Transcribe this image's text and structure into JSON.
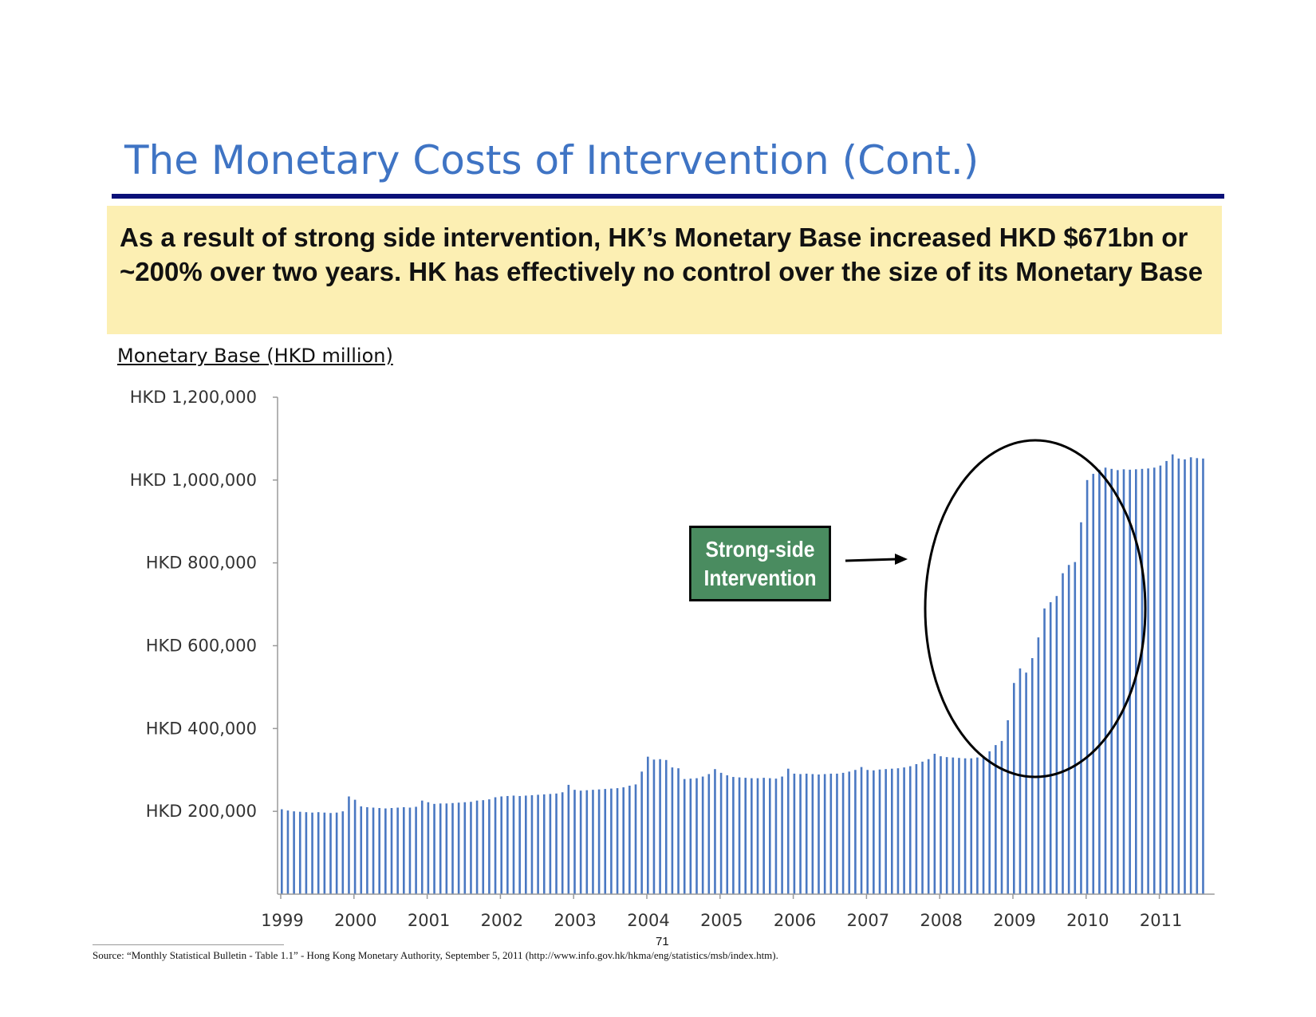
{
  "slide": {
    "title": "The Monetary Costs of Intervention (Cont.)",
    "callout": "As a result of strong side intervention, HK’s Monetary Base increased HKD $671bn or ~200% over two years. HK has effectively no control over the size of its Monetary Base",
    "chart_subtitle": "Monetary Base (HKD million)",
    "annotation": {
      "line1": "Strong-side",
      "line2": "Intervention"
    },
    "page_number": "71",
    "source": "Source: “Monthly Statistical Bulletin - Table 1.1” - Hong Kong Monetary Authority, September 5, 2011 (http://www.info.gov.hk/hkma/eng/statistics/msb/index.htm).",
    "colors": {
      "title": "#3f74c4",
      "rule": "#0a1078",
      "callout_bg": "#fcefb3",
      "bar": "#4a78c2",
      "annotation_bg": "#4a8c60"
    }
  },
  "chart_data": {
    "type": "bar",
    "title": "Monetary Base (HKD million)",
    "xlabel": "",
    "ylabel": "",
    "ylim": [
      0,
      1200000
    ],
    "yticks": [
      200000,
      400000,
      600000,
      800000,
      1000000,
      1200000
    ],
    "ytick_labels": [
      "HKD 200,000",
      "HKD 400,000",
      "HKD 600,000",
      "HKD 800,000",
      "HKD 1,000,000",
      "HKD 1,200,000"
    ],
    "year_labels": [
      "1999",
      "2000",
      "2001",
      "2002",
      "2003",
      "2004",
      "2005",
      "2006",
      "2007",
      "2008",
      "2009",
      "2010",
      "2011"
    ],
    "frequency": "monthly",
    "start": "1999-01",
    "series": [
      {
        "name": "Monetary Base",
        "values": [
          205000,
          202000,
          200000,
          199000,
          198000,
          197000,
          198000,
          197000,
          196000,
          197000,
          200000,
          236000,
          228000,
          212000,
          210000,
          209000,
          208000,
          207000,
          208000,
          209000,
          210000,
          209000,
          211000,
          226000,
          222000,
          218000,
          219000,
          219000,
          220000,
          221000,
          222000,
          223000,
          226000,
          227000,
          229000,
          234000,
          236000,
          237000,
          238000,
          237000,
          238000,
          239000,
          240000,
          241000,
          242000,
          243000,
          246000,
          264000,
          252000,
          250000,
          251000,
          252000,
          253000,
          254000,
          255000,
          256000,
          258000,
          262000,
          265000,
          296000,
          332000,
          325000,
          326000,
          324000,
          306000,
          304000,
          278000,
          279000,
          280000,
          284000,
          290000,
          302000,
          293000,
          287000,
          283000,
          282000,
          281000,
          280000,
          280000,
          281000,
          280000,
          279000,
          284000,
          303000,
          291000,
          290000,
          291000,
          290000,
          289000,
          290000,
          291000,
          291000,
          293000,
          296000,
          300000,
          307000,
          300000,
          299000,
          301000,
          302000,
          303000,
          304000,
          306000,
          309000,
          314000,
          320000,
          326000,
          339000,
          333000,
          331000,
          330000,
          329000,
          328000,
          328000,
          330000,
          331000,
          345000,
          360000,
          370000,
          420000,
          510000,
          545000,
          535000,
          570000,
          620000,
          690000,
          705000,
          720000,
          775000,
          795000,
          802000,
          898000,
          1000000,
          1015000,
          1025000,
          1030000,
          1027000,
          1024000,
          1026000,
          1025000,
          1026000,
          1027000,
          1028000,
          1030000,
          1035000,
          1046000,
          1062000,
          1052000,
          1050000,
          1055000,
          1053000,
          1052000
        ]
      }
    ],
    "annotations": [
      {
        "text": "Strong-side Intervention",
        "target": "2009–2010 increase",
        "shape": "ellipse"
      }
    ]
  }
}
